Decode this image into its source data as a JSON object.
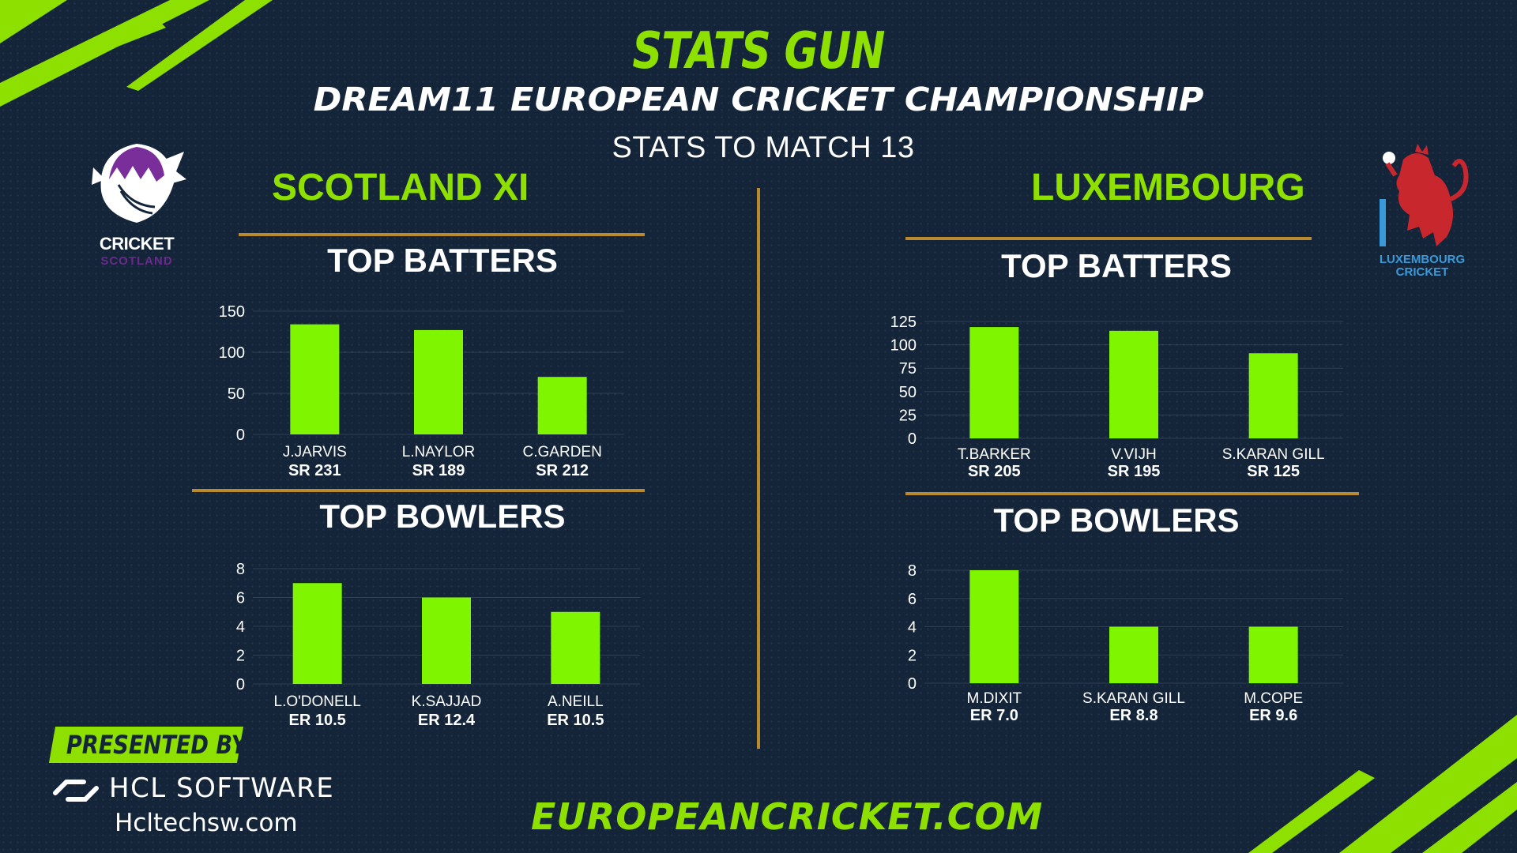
{
  "header": {
    "brand": "STATS GUN",
    "championship": "DREAM11 EUROPEAN CRICKET CHAMPIONSHIP",
    "subtitle": "STATS TO MATCH 13"
  },
  "colors": {
    "accent": "#8ee000",
    "bar": "#7ff500",
    "background": "#14253a",
    "divider": "#b98a2e"
  },
  "teams": {
    "left": {
      "name": "SCOTLAND XI",
      "logo_text": "CRICKET",
      "logo_subtext": "SCOTLAND",
      "logo_icon": "cricket-scotland-thistle-icon"
    },
    "right": {
      "name": "LUXEMBOURG",
      "logo_text_1": "LUXEMBOURG",
      "logo_text_2": "CRICKET",
      "logo_icon": "luxembourg-lion-icon"
    }
  },
  "sections": {
    "batters_title": "TOP BATTERS",
    "bowlers_title": "TOP BOWLERS"
  },
  "chart_data": [
    {
      "type": "bar",
      "team": "SCOTLAND XI",
      "section": "TOP BATTERS",
      "categories": [
        "J.JARVIS",
        "L.NAYLOR",
        "C.GARDEN"
      ],
      "sublabels": [
        "SR 231",
        "SR 189",
        "SR 212"
      ],
      "values": [
        134,
        127,
        70
      ],
      "ylim": [
        0,
        150
      ],
      "yticks": [
        0,
        50,
        100,
        150
      ],
      "grid": true
    },
    {
      "type": "bar",
      "team": "SCOTLAND XI",
      "section": "TOP BOWLERS",
      "categories": [
        "L.O'DONELL",
        "K.SAJJAD",
        "A.NEILL"
      ],
      "sublabels": [
        "ER 10.5",
        "ER 12.4",
        "ER 10.5"
      ],
      "values": [
        7,
        6,
        5
      ],
      "ylim": [
        0,
        8
      ],
      "yticks": [
        0,
        2,
        4,
        6,
        8
      ],
      "grid": true
    },
    {
      "type": "bar",
      "team": "LUXEMBOURG",
      "section": "TOP BATTERS",
      "categories": [
        "T.BARKER",
        "V.VIJH",
        "S.KARAN GILL"
      ],
      "sublabels": [
        "SR 205",
        "SR 195",
        "SR 125"
      ],
      "values": [
        119,
        115,
        91
      ],
      "ylim": [
        0,
        125
      ],
      "yticks": [
        0,
        25,
        50,
        75,
        100,
        125
      ],
      "grid": true
    },
    {
      "type": "bar",
      "team": "LUXEMBOURG",
      "section": "TOP BOWLERS",
      "categories": [
        "M.DIXIT",
        "S.KARAN GILL",
        "M.COPE"
      ],
      "sublabels": [
        "ER 7.0",
        "ER 8.8",
        "ER 9.6"
      ],
      "values": [
        8,
        4,
        4
      ],
      "ylim": [
        0,
        8
      ],
      "yticks": [
        0,
        2,
        4,
        6,
        8
      ],
      "grid": true
    }
  ],
  "footer": {
    "presented_by": "PRESENTED BY",
    "sponsor_name": "HCL SOFTWARE",
    "sponsor_url": "Hcltechsw.com",
    "sponsor_icon": "hcl-logo-icon",
    "website": "EUROPEANCRICKET.COM"
  }
}
